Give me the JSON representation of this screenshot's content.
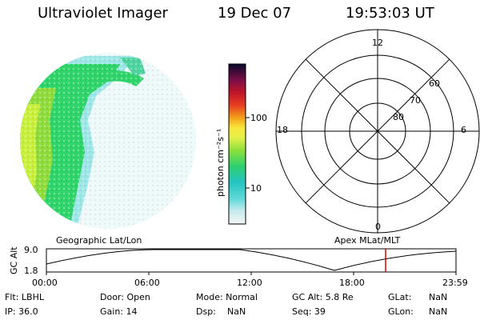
{
  "header": {
    "title": "Ultraviolet Imager",
    "date": "19 Dec 07",
    "time": "19:53:03 UT"
  },
  "colorbar": {
    "label": "photon cm⁻²s⁻¹",
    "ticks": [
      "100",
      "10"
    ]
  },
  "polar_plot": {
    "mlt_labels": [
      "12",
      "18",
      "6",
      "0"
    ],
    "lat_labels": [
      "60",
      "70",
      "80"
    ]
  },
  "orbit_panel": {
    "left_caption": "Geographic Lat/Lon",
    "right_caption": "Apex MLat/MLT",
    "ylabel": "GC Alt",
    "y_ticks": [
      "9.0",
      "1.8"
    ],
    "x_ticks": [
      "00:00",
      "06:00",
      "12:00",
      "18:00",
      "23:59"
    ],
    "current_time_marker": "19:53",
    "marker_color": "#e00000"
  },
  "info": {
    "filter": "Flt: LBHL",
    "door": "Door: Open",
    "mode": "Mode: Normal",
    "gc_alt": "GC Alt: 5.8 Re",
    "glat": "GLat:",
    "glat_value": "NaN",
    "ip": "IP: 36.0",
    "gain": "Gain: 14",
    "dsp": "Dsp:",
    "dsp_value": "NaN",
    "seq": "Seq: 39",
    "glon": "GLon:",
    "glon_value": "NaN"
  },
  "colors": {
    "image_yellow": "#c8f03c",
    "image_green": "#2fd46a",
    "image_cyan": "#9ee7e8",
    "image_pale": "#dff5f5"
  }
}
